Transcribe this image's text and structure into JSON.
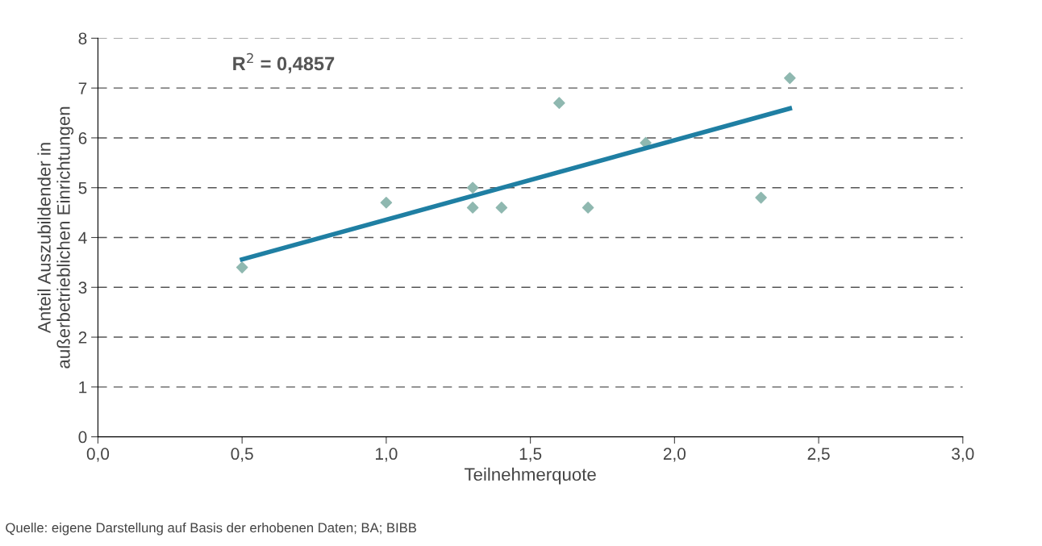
{
  "chart_data": {
    "type": "scatter",
    "xlabel": "Teilnehmerquote",
    "ylabel": "Anteil Auszubildender in\naußerbetrieblichen Einrichtungen",
    "series": [
      {
        "color": "#8fb8b0",
        "x": [
          0.5,
          1.0,
          1.3,
          1.3,
          1.4,
          1.6,
          1.7,
          1.9,
          2.3,
          2.4
        ],
        "values": [
          3.4,
          4.7,
          5.0,
          4.6,
          4.6,
          6.7,
          4.6,
          5.9,
          4.8,
          7.2
        ],
        "marker": "diamond"
      },
      {
        "type": "line",
        "color": "#1f7fa3",
        "x": [
          0.5,
          2.4
        ],
        "values": [
          3.56,
          6.59
        ],
        "marker": "none",
        "line_style": "solid"
      }
    ],
    "xlim": [
      0,
      3
    ],
    "ylim": [
      0,
      8
    ],
    "xticks": [
      {
        "value": 0,
        "label": "0,0"
      },
      {
        "value": 0.5,
        "label": "0,5"
      },
      {
        "value": 1,
        "label": "1,0"
      },
      {
        "value": 1.5,
        "label": "1,5"
      },
      {
        "value": 2,
        "label": "2,0"
      },
      {
        "value": 2.5,
        "label": "2,5"
      },
      {
        "value": 3,
        "label": "3,0"
      }
    ],
    "yticks": [
      0,
      1,
      2,
      3,
      4,
      5,
      6,
      7,
      8
    ],
    "grid": "y",
    "annotations": [
      "R$^{2}$ = 0,4857",
      "Quelle: eigene Darstellung auf Basis der erhobenen Daten; BA; BIBB"
    ]
  }
}
